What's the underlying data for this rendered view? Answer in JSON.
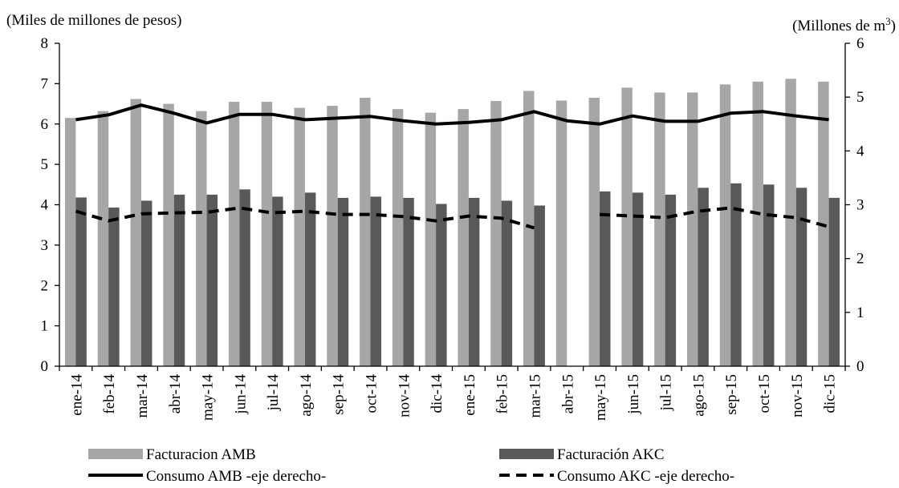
{
  "chart_data": {
    "type": "bar",
    "title": "",
    "left_axis": {
      "unit_label": "(Miles de millones  de pesos)",
      "ylim": [
        0,
        8
      ],
      "ticks": [
        "0",
        "1",
        "2",
        "3",
        "4",
        "5",
        "6",
        "7",
        "8"
      ]
    },
    "right_axis": {
      "unit_label_main": "(Millones  de m",
      "unit_label_sup": "3",
      "unit_label_end": ")",
      "ylim": [
        0,
        6
      ],
      "ticks": [
        "0",
        "1",
        "2",
        "3",
        "4",
        "5",
        "6"
      ]
    },
    "categories": [
      "ene-14",
      "feb-14",
      "mar-14",
      "abr-14",
      "may-14",
      "jun-14",
      "jul-14",
      "ago-14",
      "sep-14",
      "oct-14",
      "nov-14",
      "dic-14",
      "ene-15",
      "feb-15",
      "mar-15",
      "abr-15",
      "may-15",
      "jun-15",
      "jul-15",
      "ago-15",
      "sep-15",
      "oct-15",
      "nov-15",
      "dic-15"
    ],
    "series": [
      {
        "name": "Facturacion AMB",
        "kind": "bar",
        "axis": "left",
        "color": "#a6a6a6",
        "values": [
          6.15,
          6.32,
          6.62,
          6.5,
          6.32,
          6.55,
          6.55,
          6.4,
          6.45,
          6.65,
          6.37,
          6.28,
          6.37,
          6.57,
          6.82,
          6.58,
          6.65,
          6.9,
          6.78,
          6.78,
          6.98,
          7.05,
          7.12,
          7.05
        ]
      },
      {
        "name": "Facturación AKC",
        "kind": "bar",
        "axis": "left",
        "color": "#595959",
        "values": [
          4.18,
          3.93,
          4.1,
          4.25,
          4.25,
          4.38,
          4.2,
          4.3,
          4.17,
          4.2,
          4.17,
          4.02,
          4.17,
          4.1,
          3.98,
          null,
          4.33,
          4.3,
          4.25,
          4.42,
          4.53,
          4.5,
          4.42,
          4.17
        ]
      },
      {
        "name": "Consumo AMB -eje derecho-",
        "kind": "line",
        "axis": "right",
        "color": "#000000",
        "style": "solid",
        "values": [
          4.58,
          4.67,
          4.85,
          4.7,
          4.52,
          4.68,
          4.68,
          4.58,
          4.61,
          4.64,
          4.56,
          4.5,
          4.53,
          4.58,
          4.73,
          4.56,
          4.5,
          4.65,
          4.55,
          4.55,
          4.7,
          4.73,
          4.65,
          4.58
        ]
      },
      {
        "name": "Consumo AKC -eje derecho-",
        "kind": "line",
        "axis": "right",
        "color": "#000000",
        "style": "dashed",
        "values": [
          2.88,
          2.7,
          2.83,
          2.85,
          2.86,
          2.94,
          2.85,
          2.88,
          2.82,
          2.82,
          2.78,
          2.7,
          2.79,
          2.75,
          2.57,
          null,
          2.82,
          2.79,
          2.76,
          2.88,
          2.94,
          2.82,
          2.76,
          2.59
        ]
      }
    ],
    "grid": false,
    "legend_position": "bottom"
  }
}
